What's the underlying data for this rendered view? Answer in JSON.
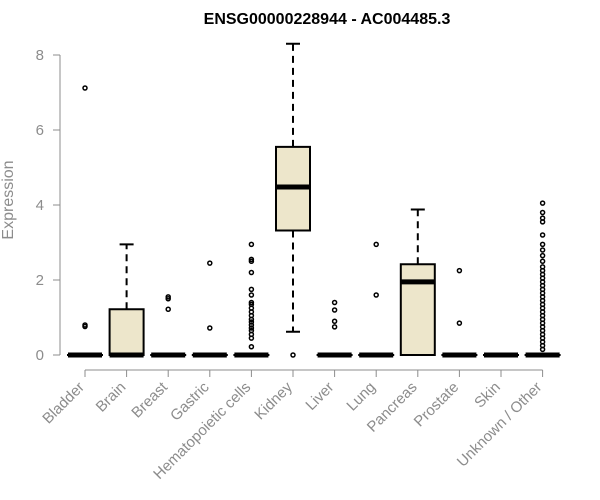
{
  "chart_data": {
    "type": "box",
    "title": "ENSG00000228944 - AC004485.3",
    "ylabel": "Expression",
    "ylim": [
      0,
      8.3
    ],
    "yticks": [
      "0",
      "2",
      "4",
      "6",
      "8"
    ],
    "box_fill": "#ede6cb",
    "categories": [
      "Bladder",
      "Brain",
      "Breast",
      "Gastric",
      "Hematopoietic cells",
      "Kidney",
      "Liver",
      "Lung",
      "Pancreas",
      "Prostate",
      "Skin",
      "Unknown / Other"
    ],
    "boxes": [
      {
        "category": "Bladder",
        "min": 0,
        "q1": 0,
        "median": 0,
        "q3": 0,
        "max": 0,
        "outliers": [
          7.12,
          0.8,
          0.76
        ]
      },
      {
        "category": "Brain",
        "min": 0,
        "q1": 0,
        "median": 0,
        "q3": 1.22,
        "max": 2.95,
        "outliers": []
      },
      {
        "category": "Breast",
        "min": 0,
        "q1": 0,
        "median": 0,
        "q3": 0,
        "max": 0,
        "outliers": [
          1.55,
          1.5,
          1.22
        ]
      },
      {
        "category": "Gastric",
        "min": 0,
        "q1": 0,
        "median": 0,
        "q3": 0,
        "max": 0,
        "outliers": [
          2.45,
          0.72
        ]
      },
      {
        "category": "Hematopoietic cells",
        "min": 0,
        "q1": 0,
        "median": 0,
        "q3": 0,
        "max": 0,
        "outliers": [
          2.95,
          2.55,
          2.5,
          2.2,
          1.75,
          1.6,
          1.4,
          1.35,
          1.25,
          1.15,
          1.05,
          0.95,
          0.88,
          0.8,
          0.72,
          0.65,
          0.55,
          0.45,
          0.22
        ]
      },
      {
        "category": "Kidney",
        "min": 0.62,
        "q1": 3.32,
        "median": 4.48,
        "q3": 5.55,
        "max": 8.3,
        "outliers": [
          0
        ]
      },
      {
        "category": "Liver",
        "min": 0,
        "q1": 0,
        "median": 0,
        "q3": 0,
        "max": 0,
        "outliers": [
          1.4,
          1.2,
          0.9,
          0.75
        ]
      },
      {
        "category": "Lung",
        "min": 0,
        "q1": 0,
        "median": 0,
        "q3": 0,
        "max": 0,
        "outliers": [
          2.95,
          1.6
        ]
      },
      {
        "category": "Pancreas",
        "min": 0,
        "q1": 0,
        "median": 1.95,
        "q3": 2.42,
        "max": 3.88,
        "outliers": []
      },
      {
        "category": "Prostate",
        "min": 0,
        "q1": 0,
        "median": 0,
        "q3": 0,
        "max": 0,
        "outliers": [
          2.25,
          0.85
        ]
      },
      {
        "category": "Skin",
        "min": 0,
        "q1": 0,
        "median": 0,
        "q3": 0,
        "max": 0,
        "outliers": []
      },
      {
        "category": "Unknown / Other",
        "min": 0,
        "q1": 0,
        "median": 0,
        "q3": 0,
        "max": 0,
        "outliers": [
          4.05,
          3.8,
          3.65,
          3.55,
          3.2,
          2.95,
          2.8,
          2.65,
          2.5,
          2.35,
          2.25,
          2.15,
          2.05,
          1.95,
          1.85,
          1.75,
          1.65,
          1.55,
          1.45,
          1.35,
          1.25,
          1.15,
          1.05,
          0.95,
          0.85,
          0.75,
          0.65,
          0.55,
          0.45,
          0.35,
          0.25,
          0.15
        ]
      }
    ]
  }
}
